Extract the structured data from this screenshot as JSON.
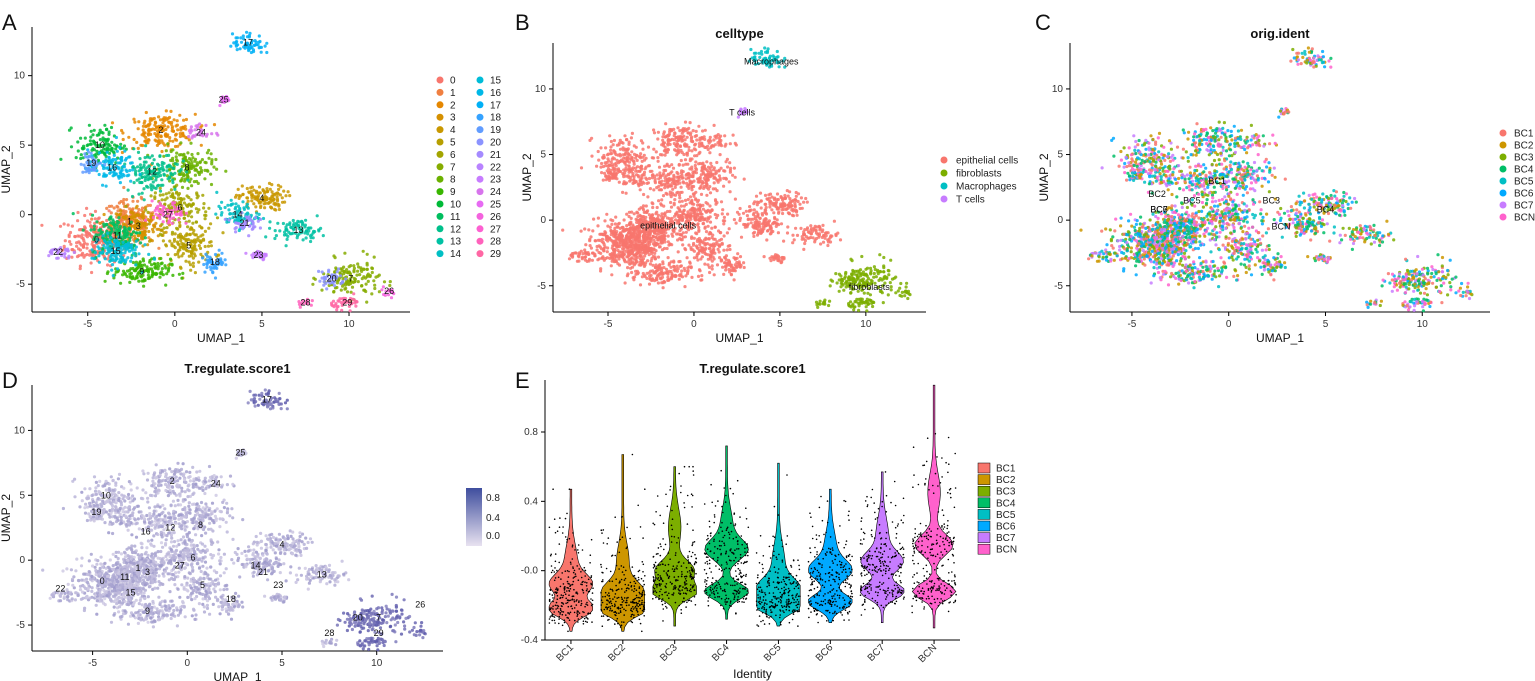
{
  "figure": {
    "panel_labels": [
      "A",
      "B",
      "C",
      "D",
      "E"
    ]
  },
  "chart_data": [
    {
      "panel": "A",
      "type": "scatter",
      "title": "",
      "xlabel": "UMAP_1",
      "ylabel": "UMAP_2",
      "xlim": [
        -8.2,
        13.5
      ],
      "ylim": [
        -7,
        13.5
      ],
      "xticks": [
        -5,
        0,
        5,
        10
      ],
      "yticks": [
        -5,
        0,
        5,
        10
      ],
      "legend_title": "",
      "legend": [
        "0",
        "1",
        "2",
        "3",
        "4",
        "5",
        "6",
        "7",
        "8",
        "9",
        "10",
        "11",
        "12",
        "13",
        "14",
        "15",
        "16",
        "17",
        "18",
        "19",
        "20",
        "21",
        "22",
        "23",
        "24",
        "25",
        "26",
        "27",
        "28",
        "29"
      ],
      "colors": [
        "#F8766D",
        "#F07F40",
        "#E58700",
        "#D59000",
        "#C99800",
        "#B79F00",
        "#A3A500",
        "#86AC00",
        "#6BB100",
        "#39B600",
        "#00BA38",
        "#00BE5E",
        "#00C08B",
        "#00C1A3",
        "#00BFC4",
        "#00BCD8",
        "#00B8E7",
        "#00B0F6",
        "#35A2FF",
        "#619CFF",
        "#8B93FF",
        "#A58AFF",
        "#B983FF",
        "#C77CFF",
        "#D774EC",
        "#E76BF3",
        "#F463DE",
        "#FD61D1",
        "#FF62BC",
        "#FF67A4"
      ],
      "cluster_labels": [
        {
          "id": "17",
          "x": 4.2,
          "y": 12.4
        },
        {
          "id": "25",
          "x": 2.8,
          "y": 8.3
        },
        {
          "id": "2",
          "x": -0.8,
          "y": 6.1
        },
        {
          "id": "24",
          "x": 1.5,
          "y": 5.9
        },
        {
          "id": "10",
          "x": -4.3,
          "y": 5.0
        },
        {
          "id": "19",
          "x": -4.8,
          "y": 3.7
        },
        {
          "id": "16",
          "x": -3.6,
          "y": 3.4
        },
        {
          "id": "12",
          "x": -1.3,
          "y": 3.1
        },
        {
          "id": "8",
          "x": 0.7,
          "y": 3.4
        },
        {
          "id": "4",
          "x": 5.0,
          "y": 1.2
        },
        {
          "id": "6",
          "x": 0.3,
          "y": 0.5
        },
        {
          "id": "27",
          "x": -0.4,
          "y": 0.0
        },
        {
          "id": "1",
          "x": -2.6,
          "y": -0.5
        },
        {
          "id": "3",
          "x": -2.1,
          "y": -0.8
        },
        {
          "id": "14",
          "x": 3.6,
          "y": 0.0
        },
        {
          "id": "21",
          "x": 4.0,
          "y": -0.6
        },
        {
          "id": "13",
          "x": 7.1,
          "y": -1.1
        },
        {
          "id": "11",
          "x": -3.3,
          "y": -1.5
        },
        {
          "id": "0",
          "x": -4.5,
          "y": -1.8
        },
        {
          "id": "5",
          "x": 0.8,
          "y": -2.2
        },
        {
          "id": "15",
          "x": -3.4,
          "y": -2.6
        },
        {
          "id": "22",
          "x": -6.7,
          "y": -2.7
        },
        {
          "id": "23",
          "x": 4.8,
          "y": -2.9
        },
        {
          "id": "18",
          "x": 2.3,
          "y": -3.4
        },
        {
          "id": "9",
          "x": -1.9,
          "y": -4.1
        },
        {
          "id": "20",
          "x": 9.0,
          "y": -4.6
        },
        {
          "id": "7",
          "x": 10.1,
          "y": -4.6
        },
        {
          "id": "26",
          "x": 12.3,
          "y": -5.5
        },
        {
          "id": "29",
          "x": 9.9,
          "y": -6.3
        },
        {
          "id": "28",
          "x": 7.5,
          "y": -6.3
        }
      ]
    },
    {
      "panel": "B",
      "type": "scatter",
      "title": "celltype",
      "xlabel": "UMAP_1",
      "ylabel": "UMAP_2",
      "xlim": [
        -8.2,
        13.5
      ],
      "ylim": [
        -7,
        13.5
      ],
      "xticks": [
        -5,
        0,
        5,
        10
      ],
      "yticks": [
        -5,
        0,
        5,
        10
      ],
      "legend": [
        "epithelial cells",
        "fibroblasts",
        "Macrophages",
        "T cells"
      ],
      "colors": [
        "#F8766D",
        "#7CAE00",
        "#00BFC4",
        "#C77CFF"
      ],
      "cluster_labels": [
        {
          "id": "Macrophages",
          "x": 4.5,
          "y": 12.1
        },
        {
          "id": "T cells",
          "x": 2.8,
          "y": 8.2
        },
        {
          "id": "epithelial cells",
          "x": -1.5,
          "y": -0.4
        },
        {
          "id": "fibroblasts",
          "x": 10.2,
          "y": -5.1
        }
      ]
    },
    {
      "panel": "C",
      "type": "scatter",
      "title": "orig.ident",
      "xlabel": "UMAP_1",
      "ylabel": "UMAP_2",
      "xlim": [
        -8.2,
        13.5
      ],
      "ylim": [
        -7,
        13.5
      ],
      "xticks": [
        -5,
        0,
        5,
        10
      ],
      "yticks": [
        -5,
        0,
        5,
        10
      ],
      "legend": [
        "BC1",
        "BC2",
        "BC3",
        "BC4",
        "BC5",
        "BC6",
        "BC7",
        "BCN"
      ],
      "colors": [
        "#F8766D",
        "#CD9600",
        "#7CAE00",
        "#00BE67",
        "#00BFC4",
        "#00A9FF",
        "#C77CFF",
        "#FF61CC"
      ],
      "cluster_labels": [
        {
          "id": "BC1",
          "x": -0.6,
          "y": 3.0
        },
        {
          "id": "BC2",
          "x": -3.7,
          "y": 2.0
        },
        {
          "id": "BC5",
          "x": -1.9,
          "y": 1.5
        },
        {
          "id": "BC3",
          "x": 2.2,
          "y": 1.5
        },
        {
          "id": "BC4",
          "x": 5.0,
          "y": 0.8
        },
        {
          "id": "BC6",
          "x": -3.6,
          "y": 0.8
        },
        {
          "id": "BC7",
          "x": -3.6,
          "y": 0.8
        },
        {
          "id": "BCN",
          "x": 2.7,
          "y": -0.5
        }
      ]
    },
    {
      "panel": "D",
      "type": "scatter",
      "title": "T.regulate.score1",
      "xlabel": "UMAP_1",
      "ylabel": "UMAP_2",
      "xlim": [
        -8.2,
        13.5
      ],
      "ylim": [
        -7,
        13.5
      ],
      "xticks": [
        -5,
        0,
        5,
        10
      ],
      "yticks": [
        -5,
        0,
        5,
        10
      ],
      "colorbar": {
        "ticks": [
          "0.8",
          "0.4",
          "0.0"
        ],
        "low": "#e8e2f0",
        "high": "#3f4e9e"
      },
      "cluster_labels": [
        {
          "id": "17",
          "x": 4.2,
          "y": 12.4
        },
        {
          "id": "25",
          "x": 2.8,
          "y": 8.3
        },
        {
          "id": "2",
          "x": -0.8,
          "y": 6.1
        },
        {
          "id": "24",
          "x": 1.5,
          "y": 5.9
        },
        {
          "id": "10",
          "x": -4.3,
          "y": 5.0
        },
        {
          "id": "19",
          "x": -4.8,
          "y": 3.7
        },
        {
          "id": "16",
          "x": -2.2,
          "y": 2.2
        },
        {
          "id": "12",
          "x": -0.9,
          "y": 2.5
        },
        {
          "id": "8",
          "x": 0.7,
          "y": 2.7
        },
        {
          "id": "4",
          "x": 5.0,
          "y": 1.2
        },
        {
          "id": "6",
          "x": 0.3,
          "y": 0.2
        },
        {
          "id": "27",
          "x": -0.4,
          "y": -0.4
        },
        {
          "id": "1",
          "x": -2.6,
          "y": -0.6
        },
        {
          "id": "3",
          "x": -2.1,
          "y": -0.9
        },
        {
          "id": "14",
          "x": 3.6,
          "y": -0.4
        },
        {
          "id": "21",
          "x": 4.0,
          "y": -0.9
        },
        {
          "id": "13",
          "x": 7.1,
          "y": -1.1
        },
        {
          "id": "11",
          "x": -3.3,
          "y": -1.3
        },
        {
          "id": "0",
          "x": -4.5,
          "y": -1.6
        },
        {
          "id": "5",
          "x": 0.8,
          "y": -1.9
        },
        {
          "id": "15",
          "x": -3.0,
          "y": -2.5
        },
        {
          "id": "22",
          "x": -6.7,
          "y": -2.2
        },
        {
          "id": "23",
          "x": 4.8,
          "y": -1.9
        },
        {
          "id": "18",
          "x": 2.3,
          "y": -3.0
        },
        {
          "id": "9",
          "x": -2.1,
          "y": -3.9
        },
        {
          "id": "20",
          "x": 9.0,
          "y": -4.4
        },
        {
          "id": "7",
          "x": 10.1,
          "y": -4.4
        },
        {
          "id": "26",
          "x": 12.3,
          "y": -3.4
        },
        {
          "id": "29",
          "x": 10.1,
          "y": -5.6
        },
        {
          "id": "28",
          "x": 7.5,
          "y": -5.6
        }
      ]
    },
    {
      "panel": "E",
      "type": "violin",
      "title": "T.regulate.score1",
      "xlabel": "Identity",
      "ylabel": "",
      "ylim": [
        -0.4,
        1.1
      ],
      "yticks": [
        -0.4,
        0.0,
        0.4,
        0.8
      ],
      "ytick_labels": [
        "-0.4",
        "-0.0",
        "0.4",
        "0.8"
      ],
      "categories": [
        "BC1",
        "BC2",
        "BC3",
        "BC4",
        "BC5",
        "BC6",
        "BC7",
        "BCN"
      ],
      "colors": [
        "#F8766D",
        "#CD9600",
        "#7CAE00",
        "#00BE67",
        "#00BFC4",
        "#00A9FF",
        "#C77CFF",
        "#FF61CC"
      ],
      "legend": [
        "BC1",
        "BC2",
        "BC3",
        "BC4",
        "BC5",
        "BC6",
        "BC7",
        "BCN"
      ],
      "violins": [
        {
          "min": -0.35,
          "max": 0.47,
          "mode1": -0.22,
          "mode2": -0.08,
          "upper_mode": 0.05
        },
        {
          "min": -0.35,
          "max": 0.67,
          "mode1": -0.22,
          "mode2": -0.12,
          "upper_mode": 0.05
        },
        {
          "min": -0.32,
          "max": 0.6,
          "mode1": -0.12,
          "mode2": 0.0,
          "upper_mode": 0.25
        },
        {
          "min": -0.28,
          "max": 0.72,
          "mode1": -0.12,
          "mode2": 0.12,
          "upper_mode": 0.25
        },
        {
          "min": -0.32,
          "max": 0.62,
          "mode1": -0.2,
          "mode2": -0.1,
          "upper_mode": 0.05
        },
        {
          "min": -0.3,
          "max": 0.47,
          "mode1": -0.18,
          "mode2": 0.0,
          "upper_mode": 0.12
        },
        {
          "min": -0.3,
          "max": 0.57,
          "mode1": -0.12,
          "mode2": 0.05,
          "upper_mode": 0.2
        },
        {
          "min": -0.33,
          "max": 1.07,
          "mode1": -0.12,
          "mode2": 0.15,
          "upper_mode": 0.45
        }
      ]
    }
  ]
}
